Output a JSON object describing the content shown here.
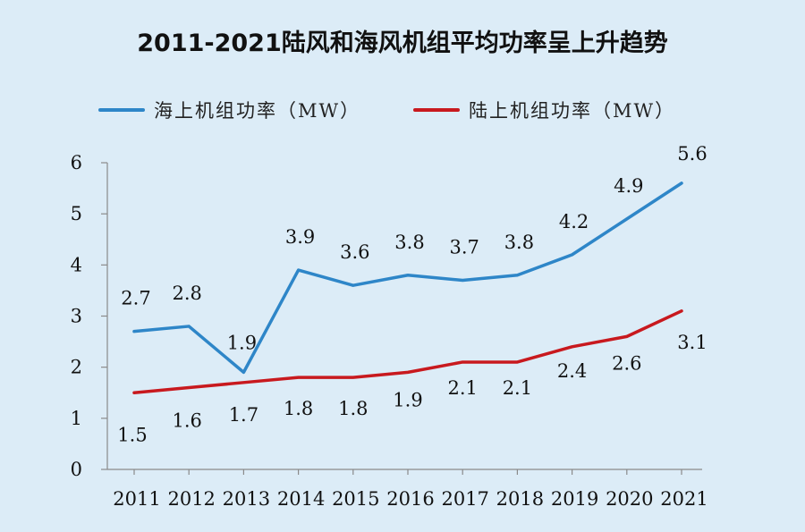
{
  "title": "2011-2021陆风和海风机组平均功率呈上升趋势",
  "legend": {
    "items": [
      {
        "label": "海上机组功率（MW）",
        "color": "#2e86c8"
      },
      {
        "label": "陆上机组功率（MW）",
        "color": "#c8191e"
      }
    ]
  },
  "chart_data": {
    "type": "line",
    "title": "2011-2021陆风和海风机组平均功率呈上升趋势",
    "xlabel": "",
    "ylabel": "",
    "categories": [
      "2011",
      "2012",
      "2013",
      "2014",
      "2015",
      "2016",
      "2017",
      "2018",
      "2019",
      "2020",
      "2021"
    ],
    "ylim": [
      0,
      6
    ],
    "yticks": [
      "0",
      "1",
      "2",
      "3",
      "4",
      "5",
      "6"
    ],
    "legend_position": "top",
    "grid": false,
    "series": [
      {
        "name": "海上机组功率（MW）",
        "color": "#2e86c8",
        "values": [
          2.7,
          2.8,
          1.9,
          3.9,
          3.6,
          3.8,
          3.7,
          3.8,
          4.2,
          4.9,
          5.6
        ],
        "labels": [
          "2.7",
          "2.8",
          "1.9",
          "3.9",
          "3.6",
          "3.8",
          "3.7",
          "3.8",
          "4.2",
          "4.9",
          "5.6"
        ]
      },
      {
        "name": "陆上机组功率（MW）",
        "color": "#c8191e",
        "values": [
          1.5,
          1.6,
          1.7,
          1.8,
          1.8,
          1.9,
          2.1,
          2.1,
          2.4,
          2.6,
          3.1
        ],
        "labels": [
          "1.5",
          "1.6",
          "1.7",
          "1.8",
          "1.8",
          "1.9",
          "2.1",
          "2.1",
          "2.4",
          "2.6",
          "3.1"
        ]
      }
    ]
  }
}
